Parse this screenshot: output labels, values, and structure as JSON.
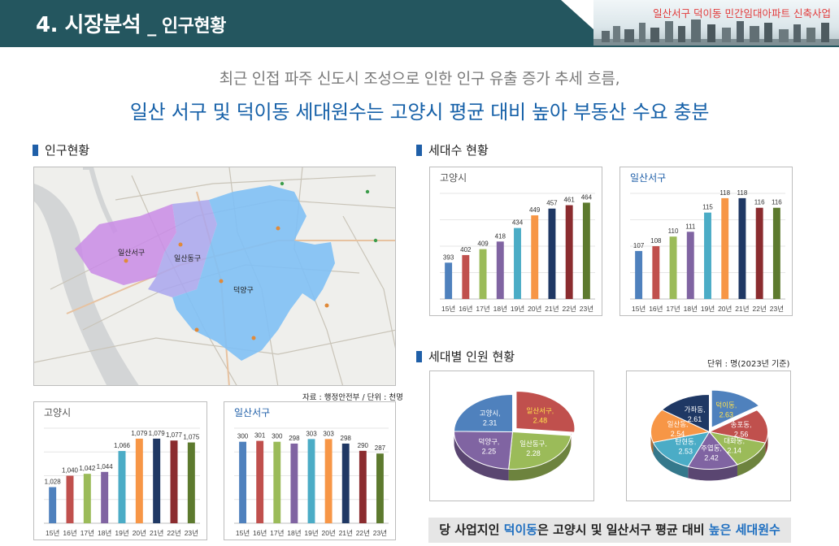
{
  "header": {
    "title": "4. 시장분석",
    "subtitle": "_ 인구현황",
    "project": "일산서구 덕이동 민간임대아파트 신축사업",
    "bar_color": "#24565f"
  },
  "headline": {
    "sub": "최근 인접 파주 신도시 조성으로 인한 인구 유출 증가 추세 흐름,",
    "main": "일산 서구 및 덕이동 세대원수는 고양시 평균 대비 높아 부동산 수요 충분"
  },
  "sections": {
    "population": "인구현황",
    "households": "세대수 현황",
    "members": "세대별 인원 현황"
  },
  "map": {
    "labels": [
      "일산서구",
      "일산동구",
      "덕양구"
    ],
    "source_note": "자료 : 행정안전부 / 단위 : 천명",
    "colors": {
      "ilsanseo": "#c98be6",
      "ilsandong": "#a9a6ee",
      "deogyang": "#7fc0f5"
    }
  },
  "unit_note": "단위 : 명(2023년 기준)",
  "conclusion": {
    "prefix": "당 사업지인 ",
    "highlight1": "덕이동",
    "middle": "은 고양시 및 일산서구 평균 대비 ",
    "highlight2": "높은 세대원수"
  },
  "bar_colors": [
    "#4f81bd",
    "#c0504d",
    "#9bbb59",
    "#8064a2",
    "#4bacc6",
    "#f79646",
    "#1f3864",
    "#8b2c2f",
    "#5d7a2e"
  ],
  "chart_data": [
    {
      "id": "pop_goyang",
      "type": "bar",
      "title": "고양시",
      "categories": [
        "15년",
        "16년",
        "17년",
        "18년",
        "19년",
        "20년",
        "21년",
        "22년",
        "23년"
      ],
      "values": [
        1028,
        1040,
        1042,
        1044,
        1066,
        1079,
        1079,
        1077,
        1075
      ],
      "data_labels": [
        "1,028",
        "1,040",
        "1,042",
        "1,044",
        "1,066",
        "1,079",
        "1,079",
        "1,077",
        "1,075"
      ],
      "ylim": [
        990,
        1090
      ]
    },
    {
      "id": "pop_ilsanseo",
      "type": "bar",
      "title": "일산서구",
      "categories": [
        "15년",
        "16년",
        "17년",
        "18년",
        "19년",
        "20년",
        "21년",
        "22년",
        "23년"
      ],
      "values": [
        300,
        301,
        300,
        298,
        303,
        303,
        298,
        290,
        287
      ],
      "data_labels": [
        "300",
        "301",
        "300",
        "298",
        "303",
        "303",
        "298",
        "290",
        "287"
      ],
      "ylim": [
        210,
        315
      ]
    },
    {
      "id": "hh_goyang",
      "type": "bar",
      "title": "고양시",
      "categories": [
        "15년",
        "16년",
        "17년",
        "18년",
        "19년",
        "20년",
        "21년",
        "22년",
        "23년"
      ],
      "values": [
        393,
        402,
        409,
        418,
        434,
        449,
        457,
        461,
        464
      ],
      "data_labels": [
        "393",
        "402",
        "409",
        "418",
        "434",
        "449",
        "457",
        "461",
        "464"
      ],
      "ylim": [
        350,
        475
      ]
    },
    {
      "id": "hh_ilsanseo",
      "type": "bar",
      "title": "일산서구",
      "categories": [
        "15년",
        "16년",
        "17년",
        "18년",
        "19년",
        "20년",
        "21년",
        "22년",
        "23년"
      ],
      "values": [
        107,
        108,
        110,
        111,
        115,
        118,
        118,
        116,
        116
      ],
      "data_labels": [
        "107",
        "108",
        "110",
        "111",
        "115",
        "118",
        "118",
        "116",
        "116"
      ],
      "ylim": [
        97,
        119
      ]
    },
    {
      "id": "members_goyang",
      "type": "pie",
      "labels": [
        "일산서구",
        "일산동구",
        "덕양구",
        "고양시"
      ],
      "values": [
        2.48,
        2.28,
        2.25,
        2.31
      ],
      "colors": [
        "#c0504d",
        "#9bbb59",
        "#8064a2",
        "#4f81bd"
      ]
    },
    {
      "id": "members_ilsanseo",
      "type": "pie",
      "labels": [
        "덕이동",
        "송포동",
        "대화동",
        "주엽동",
        "탄현동",
        "일산동",
        "가좌동"
      ],
      "values": [
        2.63,
        2.56,
        2.14,
        2.42,
        2.53,
        2.54,
        2.61
      ],
      "colors": [
        "#4f81bd",
        "#c0504d",
        "#9bbb59",
        "#8064a2",
        "#4bacc6",
        "#f79646",
        "#1f3864"
      ]
    }
  ]
}
